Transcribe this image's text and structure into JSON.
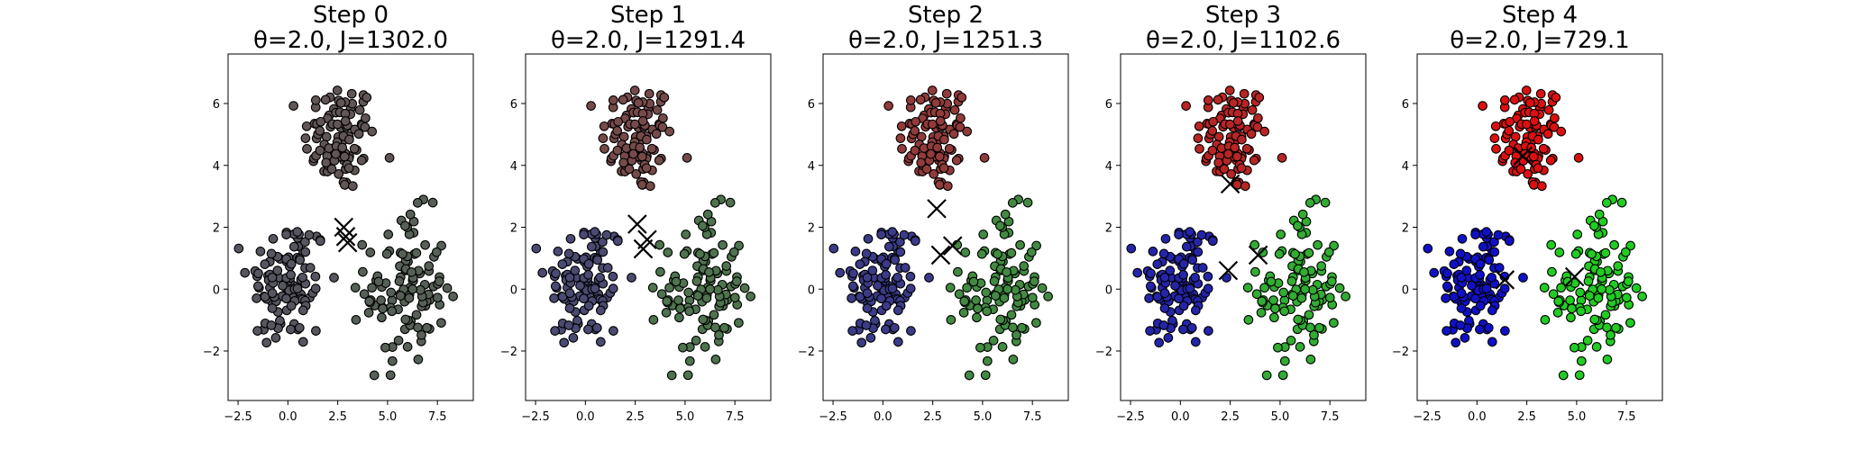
{
  "figure": {
    "background": "#ffffff",
    "point_edge_color": "#000000",
    "center_marker_color": "#000000"
  },
  "chart_data": [
    {
      "type": "scatter",
      "title_line1": "Step 0",
      "title_line2": "θ=2.0, J=1302.0",
      "xlim": [
        -3.0,
        9.3
      ],
      "ylim": [
        -3.6,
        7.6
      ],
      "xticks": [
        "-2.5",
        "0.0",
        "2.5",
        "5.0",
        "7.5"
      ],
      "yticks": [
        "-2",
        "0",
        "2",
        "4",
        "6"
      ],
      "mix": 0.05,
      "centers": [
        [
          2.8,
          2.0
        ],
        [
          2.9,
          1.7
        ],
        [
          3.0,
          1.5
        ]
      ]
    },
    {
      "type": "scatter",
      "title_line1": "Step 1",
      "title_line2": "θ=2.0, J=1291.4",
      "xlim": [
        -3.0,
        9.3
      ],
      "ylim": [
        -3.6,
        7.6
      ],
      "xticks": [
        "-2.5",
        "0.0",
        "2.5",
        "5.0",
        "7.5"
      ],
      "yticks": [
        "-2",
        "0",
        "2",
        "4",
        "6"
      ],
      "mix": 0.22,
      "centers": [
        [
          2.6,
          2.1
        ],
        [
          3.1,
          1.6
        ],
        [
          2.9,
          1.3
        ]
      ]
    },
    {
      "type": "scatter",
      "title_line1": "Step 2",
      "title_line2": "θ=2.0, J=1251.3",
      "xlim": [
        -3.0,
        9.3
      ],
      "ylim": [
        -3.6,
        7.6
      ],
      "xticks": [
        "-2.5",
        "0.0",
        "2.5",
        "5.0",
        "7.5"
      ],
      "yticks": [
        "-2",
        "0",
        "2",
        "4",
        "6"
      ],
      "mix": 0.42,
      "centers": [
        [
          2.7,
          2.6
        ],
        [
          3.5,
          1.4
        ],
        [
          2.9,
          1.1
        ]
      ]
    },
    {
      "type": "scatter",
      "title_line1": "Step 3",
      "title_line2": "θ=2.0, J=1102.6",
      "xlim": [
        -3.0,
        9.3
      ],
      "ylim": [
        -3.6,
        7.6
      ],
      "xticks": [
        "-2.5",
        "0.0",
        "2.5",
        "5.0",
        "7.5"
      ],
      "yticks": [
        "-2",
        "0",
        "2",
        "4",
        "6"
      ],
      "mix": 0.72,
      "centers": [
        [
          2.5,
          3.4
        ],
        [
          3.9,
          1.1
        ],
        [
          2.4,
          0.6
        ]
      ]
    },
    {
      "type": "scatter",
      "title_line1": "Step 4",
      "title_line2": "θ=2.0, J=729.1",
      "xlim": [
        -3.0,
        9.3
      ],
      "ylim": [
        -3.6,
        7.6
      ],
      "xticks": [
        "-2.5",
        "0.0",
        "2.5",
        "5.0",
        "7.5"
      ],
      "yticks": [
        "-2",
        "0",
        "2",
        "4",
        "6"
      ],
      "mix": 1.0,
      "centers": [
        [
          2.3,
          4.3
        ],
        [
          4.9,
          0.4
        ],
        [
          1.4,
          0.3
        ]
      ]
    }
  ]
}
